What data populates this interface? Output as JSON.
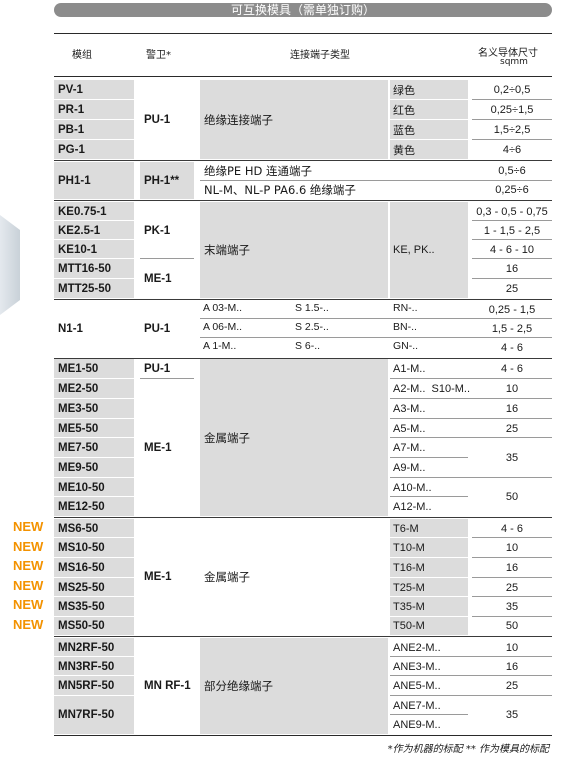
{
  "title": "可互换模具（需单独订购）",
  "headers": {
    "kit": "模组",
    "guard": "警卫*",
    "type": "连接端子类型",
    "size": "名义导体尺寸",
    "unit": "sqmm"
  },
  "rows": [
    {
      "kit": "PV-1",
      "code": "绿色",
      "size": "0,2÷0,5"
    },
    {
      "kit": "PR-1",
      "code": "红色",
      "size": "0,25÷1,5"
    },
    {
      "kit": "PB-1",
      "code": "蓝色",
      "size": "1,5÷2,5"
    },
    {
      "kit": "PG-1",
      "code": "黄色",
      "size": "4÷6"
    },
    {
      "kit": "PH1-1",
      "size1": "0,5÷6",
      "size2": "0,25÷6"
    },
    {
      "kit": "KE0.75-1",
      "size": "0,3 - 0,5 - 0,75"
    },
    {
      "kit": "KE2.5-1",
      "size": "1 - 1,5 - 2,5"
    },
    {
      "kit": "KE10-1",
      "size": "4 - 6 - 10"
    },
    {
      "kit": "MTT16-50",
      "size": "16"
    },
    {
      "kit": "MTT25-50",
      "size": "25"
    },
    {
      "kit": "N1-1",
      "subs": [
        [
          "A 03-M..",
          "S 1.5-..",
          "RN-..",
          "0,25 - 1,5"
        ],
        [
          "A 06-M..",
          "S 2.5-..",
          "BN-..",
          "1,5 - 2,5"
        ],
        [
          "A 1-M..",
          "S 6-..",
          "GN-..",
          "4 - 6"
        ]
      ]
    },
    {
      "kit": "ME1-50",
      "code": "A1-M..",
      "size": "4 - 6"
    },
    {
      "kit": "ME2-50",
      "code": "A2-M..  S10-M..",
      "size": "10"
    },
    {
      "kit": "ME3-50",
      "code": "A3-M..",
      "size": "16"
    },
    {
      "kit": "ME5-50",
      "code": "A5-M..",
      "size": "25"
    },
    {
      "kit": "ME7-50",
      "code": "A7-M.."
    },
    {
      "kit": "ME9-50",
      "code": "A9-M..",
      "size": "35"
    },
    {
      "kit": "ME10-50",
      "code": "A10-M.."
    },
    {
      "kit": "ME12-50",
      "code": "A12-M..",
      "size": "50"
    },
    {
      "kit": "MS6-50",
      "code": "T6-M",
      "size": "4 - 6",
      "new": "NEW"
    },
    {
      "kit": "MS10-50",
      "code": "T10-M",
      "size": "10",
      "new": "NEW"
    },
    {
      "kit": "MS16-50",
      "code": "T16-M",
      "size": "16",
      "new": "NEW"
    },
    {
      "kit": "MS25-50",
      "code": "T25-M",
      "size": "25",
      "new": "NEW"
    },
    {
      "kit": "MS35-50",
      "code": "T35-M",
      "size": "35",
      "new": "NEW"
    },
    {
      "kit": "MS50-50",
      "code": "T50-M",
      "size": "50",
      "new": "NEW"
    },
    {
      "kit": "MN2RF-50",
      "code": "ANE2-M..",
      "size": "10"
    },
    {
      "kit": "MN3RF-50",
      "code": "ANE3-M..",
      "size": "16"
    },
    {
      "kit": "MN5RF-50",
      "code": "ANE5-M..",
      "size": "25"
    },
    {
      "kit": "MN7RF-50",
      "code1": "ANE7-M..",
      "code2": "ANE9-M..",
      "size": "35"
    }
  ],
  "groups": [
    {
      "guard": "PU-1",
      "desc": "绝缘连接端子"
    },
    {
      "guard": "PH-1**",
      "desc1": "绝缘PE HD 连通端子",
      "desc2": "NL-M、NL-P PA6.6 绝缘端子"
    },
    {
      "guard": "PK-1",
      "desc": "末端端子",
      "code": "KE, PK.."
    },
    {
      "guard": "ME-1"
    },
    {
      "guard": "PU-1"
    },
    {
      "guard": "PU-1"
    },
    {
      "guard": "ME-1",
      "desc": "金属端子"
    },
    {
      "guard": "ME-1",
      "desc": "金属端子"
    },
    {
      "guard": "MN RF-1",
      "desc": "部分绝缘端子"
    }
  ],
  "footnote": "*作为机器的标配 ** 作为模具的标配"
}
